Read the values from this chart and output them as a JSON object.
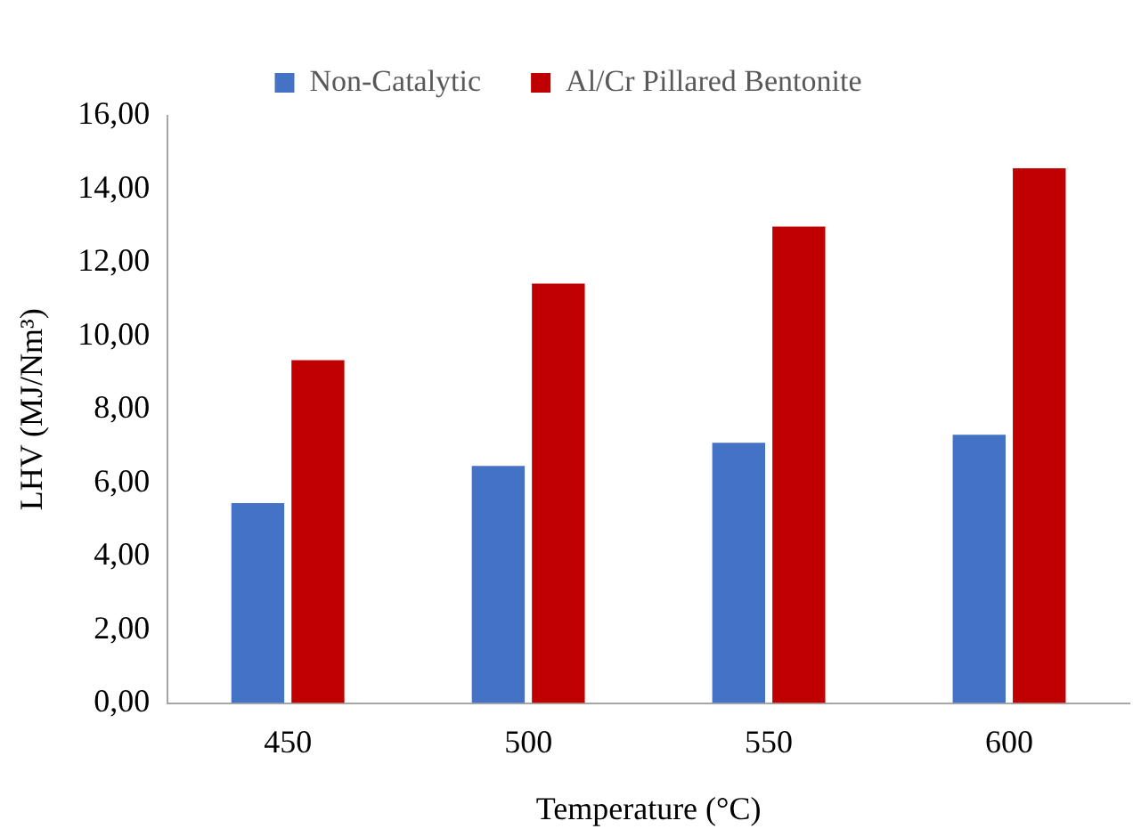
{
  "chart_data": {
    "type": "bar",
    "xlabel": "Temperature (°C)",
    "ylabel": "LHV (MJ/Nm³)",
    "categories": [
      "450",
      "500",
      "550",
      "600"
    ],
    "series": [
      {
        "name": "Non-Catalytic",
        "color": "#4472c4",
        "values": [
          5.45,
          6.46,
          7.09,
          7.31
        ]
      },
      {
        "name": "Al/Cr Pillared Bentonite",
        "color": "#c00000",
        "values": [
          9.34,
          11.43,
          12.98,
          14.57
        ]
      }
    ],
    "ylim": [
      0,
      16
    ],
    "yticks": [
      {
        "value": 0,
        "label": "0,00"
      },
      {
        "value": 2,
        "label": "2,00"
      },
      {
        "value": 4,
        "label": "4,00"
      },
      {
        "value": 6,
        "label": "6,00"
      },
      {
        "value": 8,
        "label": "8,00"
      },
      {
        "value": 10,
        "label": "10,00"
      },
      {
        "value": 12,
        "label": "12,00"
      },
      {
        "value": 14,
        "label": "14,00"
      },
      {
        "value": 16,
        "label": "16,00"
      }
    ],
    "grid": false,
    "legend": "top"
  }
}
